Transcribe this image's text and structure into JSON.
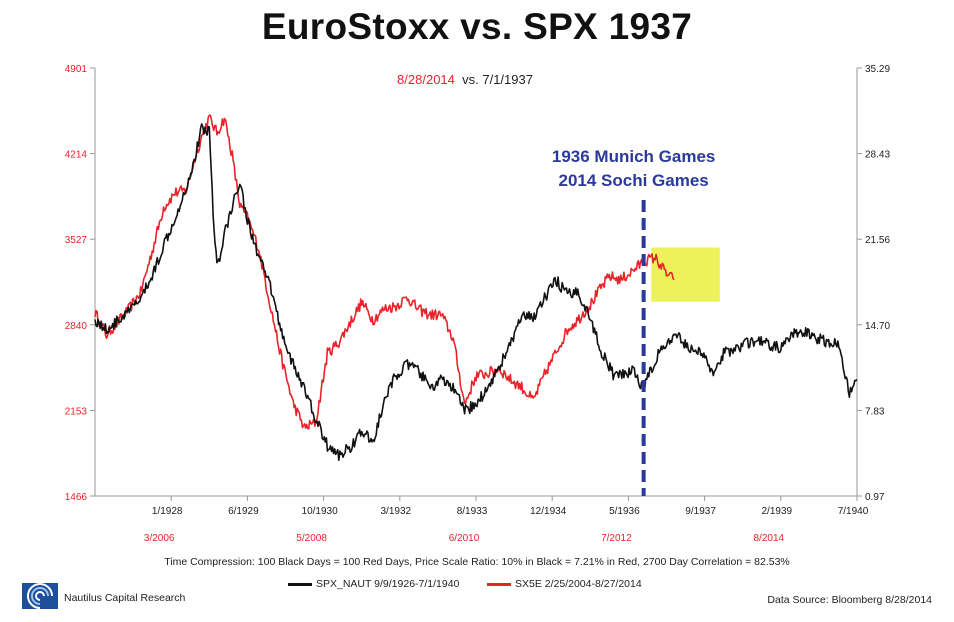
{
  "page": {
    "title": "EuroStoxx vs. SPX 1937",
    "subtitle_red": "8/28/2014",
    "subtitle_black": "vs. 7/1/1937",
    "footnote": "Time Compression: 100 Black Days = 100 Red Days,  Price Scale Ratio: 10% in Black = 7.21% in Red, 2700 Day Correlation = 82.53%",
    "legend_black": "SPX_NAUT 9/9/1926-7/1/1940",
    "legend_red": "SX5E 2/25/2004-8/27/2014",
    "logo_text": "Nautilus Capital Research",
    "source": "Data Source: Bloomberg 8/28/2014",
    "annotation_line1": "1936 Munich Games",
    "annotation_line2": "2014 Sochi Games",
    "colors": {
      "red": "#e8242b",
      "black": "#111111",
      "annotation": "#2a3a9a",
      "highlight": "#eef25a"
    }
  },
  "chart_data": {
    "type": "line",
    "title": "EuroStoxx vs. SPX 1937",
    "left_axis": {
      "ticks": [
        1466,
        2153,
        2840,
        3527,
        4214,
        4901
      ],
      "color": "#e8242b",
      "ylim": [
        1466,
        4901
      ]
    },
    "right_axis": {
      "ticks": [
        0.97,
        7.83,
        14.7,
        21.56,
        28.43,
        35.29
      ],
      "color": "#111111",
      "ylim": [
        0.97,
        35.29
      ]
    },
    "x_ticks_black": [
      "1/1928",
      "6/1929",
      "10/1930",
      "3/1932",
      "8/1933",
      "12/1934",
      "5/1936",
      "9/1937",
      "2/1939",
      "7/1940"
    ],
    "x_ticks_red": [
      "3/2006",
      "5/2008",
      "6/2010",
      "7/2012",
      "8/2014"
    ],
    "grid": false,
    "legend_position": "bottom",
    "series": [
      {
        "name": "SPX_NAUT 9/9/1926-7/1/1940",
        "color": "#111111",
        "axis": "left",
        "x": [
          0,
          1.5,
          3,
          4.5,
          6,
          7.5,
          9,
          10.5,
          12,
          13,
          14,
          15,
          15.5,
          16,
          16.5,
          17,
          18,
          19,
          20,
          21.5,
          23,
          24.5,
          26,
          27.5,
          29,
          30.5,
          32,
          33.5,
          35,
          36.5,
          38,
          39.5,
          41,
          42.5,
          44,
          45.5,
          47,
          48.5,
          50,
          51.5,
          53,
          54.5,
          56,
          57.5,
          59,
          60.5,
          62,
          63.5,
          65,
          66.5,
          68,
          69,
          70.5,
          72,
          73.5,
          75,
          76.5,
          78,
          79.5,
          81,
          82.5,
          84,
          85.5,
          87,
          88.5,
          90,
          91.5,
          93,
          94.5,
          96,
          97.5,
          99,
          100
        ],
        "y": [
          2880,
          2800,
          2870,
          2950,
          3050,
          3230,
          3480,
          3700,
          3950,
          4150,
          4420,
          4400,
          3750,
          3320,
          3380,
          3580,
          3780,
          4000,
          3680,
          3380,
          3150,
          2780,
          2520,
          2320,
          2080,
          1870,
          1790,
          1860,
          1980,
          1900,
          2230,
          2440,
          2520,
          2470,
          2330,
          2400,
          2330,
          2150,
          2200,
          2330,
          2500,
          2680,
          2900,
          2900,
          3050,
          3200,
          3080,
          3100,
          2890,
          2620,
          2440,
          2430,
          2480,
          2330,
          2560,
          2690,
          2740,
          2660,
          2620,
          2460,
          2610,
          2650,
          2690,
          2710,
          2680,
          2650,
          2760,
          2780,
          2740,
          2700,
          2690,
          2300,
          2400
        ]
      },
      {
        "name": "SX5E 2/25/2004-8/27/2014",
        "color": "#e8242b",
        "axis": "left",
        "x": [
          0,
          1.5,
          3,
          4.5,
          6,
          7.5,
          9,
          10.5,
          12,
          13,
          14,
          15,
          16,
          17,
          18,
          19,
          20,
          21.5,
          23,
          24.5,
          26,
          27.5,
          29,
          30.5,
          32,
          33.5,
          35,
          36.5,
          38,
          39.5,
          41,
          42.5,
          44,
          45.5,
          47,
          48.5,
          50,
          51.5,
          53,
          54.5,
          56,
          57.5,
          59,
          60.5,
          62,
          63.5,
          65,
          66,
          67.5,
          69,
          70.5,
          72,
          73.5,
          75,
          76
        ],
        "y": [
          2940,
          2760,
          2860,
          2970,
          3100,
          3430,
          3780,
          3900,
          3920,
          4150,
          4350,
          4500,
          4380,
          4500,
          4200,
          3800,
          3700,
          3450,
          3000,
          2560,
          2210,
          2010,
          2060,
          2610,
          2700,
          2860,
          3020,
          2880,
          2970,
          2990,
          3060,
          2960,
          2920,
          2920,
          2730,
          2200,
          2430,
          2450,
          2490,
          2400,
          2340,
          2230,
          2440,
          2620,
          2800,
          2890,
          3000,
          3100,
          3230,
          3200,
          3270,
          3350,
          3380,
          3250,
          3200
        ]
      }
    ],
    "annotations": [
      {
        "type": "vline",
        "x": 72,
        "text": [
          "1936 Munich Games",
          "2014 Sochi Games"
        ]
      },
      {
        "type": "highlight",
        "x0": 73,
        "x1": 82,
        "y0": 3025,
        "y1": 3460
      }
    ]
  }
}
